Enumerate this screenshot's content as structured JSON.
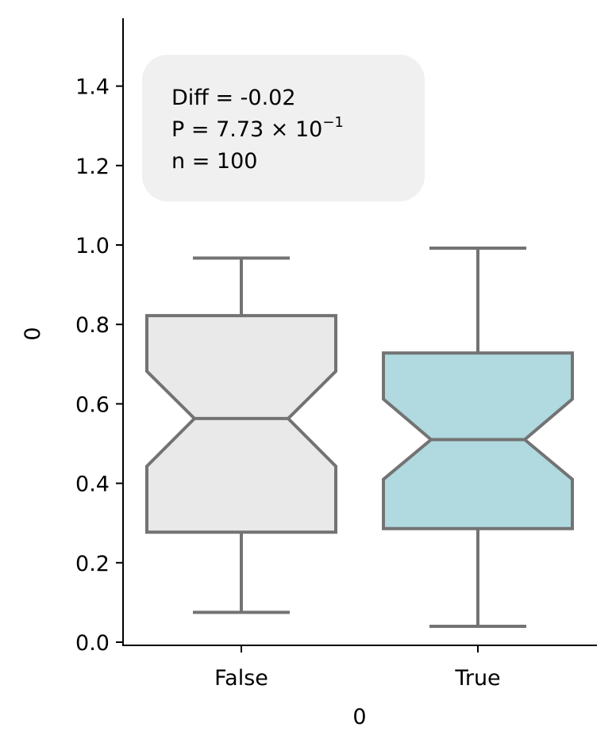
{
  "chart_data": {
    "type": "boxplot",
    "notched": true,
    "xlabel": "0",
    "ylabel": "0",
    "ylim": [
      0.0,
      1.56
    ],
    "yticks": [
      0.0,
      0.2,
      0.4,
      0.6,
      0.8,
      1.0,
      1.2,
      1.4
    ],
    "ytick_labels": [
      "0.0",
      "0.2",
      "0.4",
      "0.6",
      "0.8",
      "1.0",
      "1.2",
      "1.4"
    ],
    "categories": [
      "False",
      "True"
    ],
    "boxes": [
      {
        "category": "False",
        "whisker_low": 0.075,
        "q1": 0.277,
        "median": 0.563,
        "q3": 0.822,
        "whisker_high": 0.967,
        "notch_low": 0.443,
        "notch_high": 0.682,
        "color": "#e9e9e9"
      },
      {
        "category": "True",
        "whisker_low": 0.04,
        "q1": 0.286,
        "median": 0.51,
        "q3": 0.728,
        "whisker_high": 0.992,
        "notch_low": 0.41,
        "notch_high": 0.612,
        "color": "#b0d9e0"
      }
    ],
    "edge_color": "#737373",
    "annotation": {
      "diff_text": "Diff = -0.02",
      "p_prefix": "P = 7.73 × 10",
      "p_exponent": "−1",
      "n_text": "n = 100",
      "box_color": "#f0f0f0"
    },
    "grid": false
  }
}
